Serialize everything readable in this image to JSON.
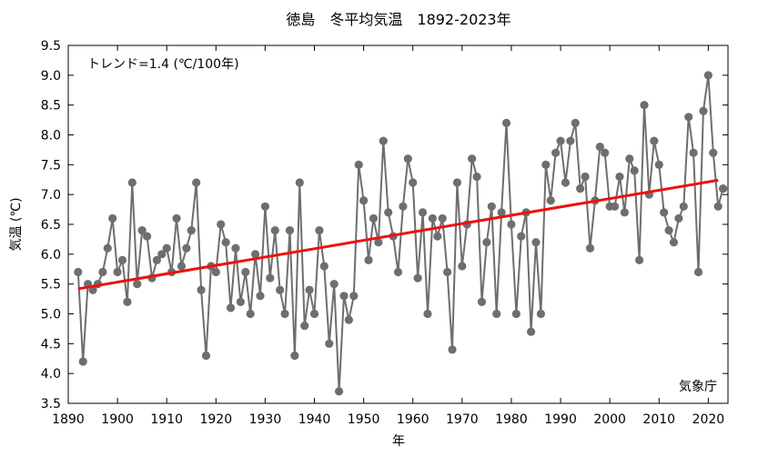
{
  "chart_data": {
    "type": "line",
    "title": "徳島　冬平均気温　1892-2023年",
    "xlabel": "年",
    "ylabel": "気温 (℃)",
    "xlim": [
      1890,
      2024
    ],
    "ylim": [
      3.5,
      9.5
    ],
    "x_ticks": [
      1890,
      1900,
      1910,
      1920,
      1930,
      1940,
      1950,
      1960,
      1970,
      1980,
      1990,
      2000,
      2010,
      2020
    ],
    "y_ticks": [
      3.5,
      4.0,
      4.5,
      5.0,
      5.5,
      6.0,
      6.5,
      7.0,
      7.5,
      8.0,
      8.5,
      9.0,
      9.5
    ],
    "y_tick_labels": [
      "3.5",
      "4.0",
      "4.5",
      "5.0",
      "5.5",
      "6.0",
      "6.5",
      "7.0",
      "7.5",
      "8.0",
      "8.5",
      "9.0",
      "9.5"
    ],
    "grid": false,
    "trend_label": "トレンド=1.4 (℃/100年)",
    "source_label": "気象庁",
    "colors": {
      "series": "#6e6e6e",
      "trend": "#ee1111"
    },
    "series": [
      {
        "x": [
          1892,
          1893,
          1894,
          1895,
          1896,
          1897,
          1898,
          1899,
          1900,
          1901,
          1902,
          1903,
          1904,
          1905,
          1906,
          1907,
          1908,
          1909,
          1910,
          1911,
          1912,
          1913,
          1914,
          1915,
          1916,
          1917,
          1918,
          1919,
          1920,
          1921,
          1922,
          1923,
          1924,
          1925,
          1926,
          1927,
          1928,
          1929,
          1930,
          1931,
          1932,
          1933,
          1934,
          1935,
          1936,
          1937,
          1938,
          1939,
          1940,
          1941,
          1942,
          1943,
          1944,
          1945,
          1946,
          1947,
          1948,
          1949,
          1950,
          1951,
          1952,
          1953,
          1954,
          1955,
          1956,
          1957,
          1958,
          1959,
          1960,
          1961,
          1962,
          1963,
          1964,
          1965,
          1966,
          1967,
          1968,
          1969,
          1970,
          1971,
          1972,
          1973,
          1974,
          1975,
          1976,
          1977,
          1978,
          1979,
          1980,
          1981,
          1982,
          1983,
          1984,
          1985,
          1986,
          1987,
          1988,
          1989,
          1990,
          1991,
          1992,
          1993,
          1994,
          1995,
          1996,
          1997,
          1998,
          1999,
          2000,
          2001,
          2002,
          2003,
          2004,
          2005,
          2006,
          2007,
          2008,
          2009,
          2010,
          2011,
          2012,
          2013,
          2014,
          2015,
          2016,
          2017,
          2018,
          2019,
          2020,
          2021,
          2022,
          2023
        ],
        "values": [
          5.7,
          4.2,
          5.5,
          5.4,
          5.5,
          5.7,
          6.1,
          6.6,
          5.7,
          5.9,
          5.2,
          7.2,
          5.5,
          6.4,
          6.3,
          5.6,
          5.9,
          6.0,
          6.1,
          5.7,
          6.6,
          5.8,
          6.1,
          6.4,
          7.2,
          5.4,
          4.3,
          5.8,
          5.7,
          6.5,
          6.2,
          5.1,
          6.1,
          5.2,
          5.7,
          5.0,
          6.0,
          5.3,
          6.8,
          5.6,
          6.4,
          5.4,
          5.0,
          6.4,
          4.3,
          7.2,
          4.8,
          5.4,
          5.0,
          6.4,
          5.8,
          4.5,
          5.5,
          3.7,
          5.3,
          4.9,
          5.3,
          7.5,
          6.9,
          5.9,
          6.6,
          6.2,
          7.9,
          6.7,
          6.3,
          5.7,
          6.8,
          7.6,
          7.2,
          5.6,
          6.7,
          5.0,
          6.6,
          6.3,
          6.6,
          5.7,
          4.4,
          7.2,
          5.8,
          6.5,
          7.6,
          7.3,
          5.2,
          6.2,
          6.8,
          5.0,
          6.7,
          8.2,
          6.5,
          5.0,
          6.3,
          6.7,
          4.7,
          6.2,
          5.0,
          7.5,
          6.9,
          7.7,
          7.9,
          7.2,
          7.9,
          8.2,
          7.1,
          7.3,
          6.1,
          6.9,
          7.8,
          7.7,
          6.8,
          6.8,
          7.3,
          6.7,
          7.6,
          7.4,
          5.9,
          8.5,
          7.0,
          7.9,
          7.5,
          6.7,
          6.4,
          6.2,
          6.6,
          6.8,
          8.3,
          7.7,
          5.7,
          8.4,
          9.0,
          7.7,
          6.8,
          7.1
        ]
      }
    ],
    "trend": {
      "x": [
        1892,
        2022
      ],
      "values": [
        5.42,
        7.24
      ]
    }
  }
}
